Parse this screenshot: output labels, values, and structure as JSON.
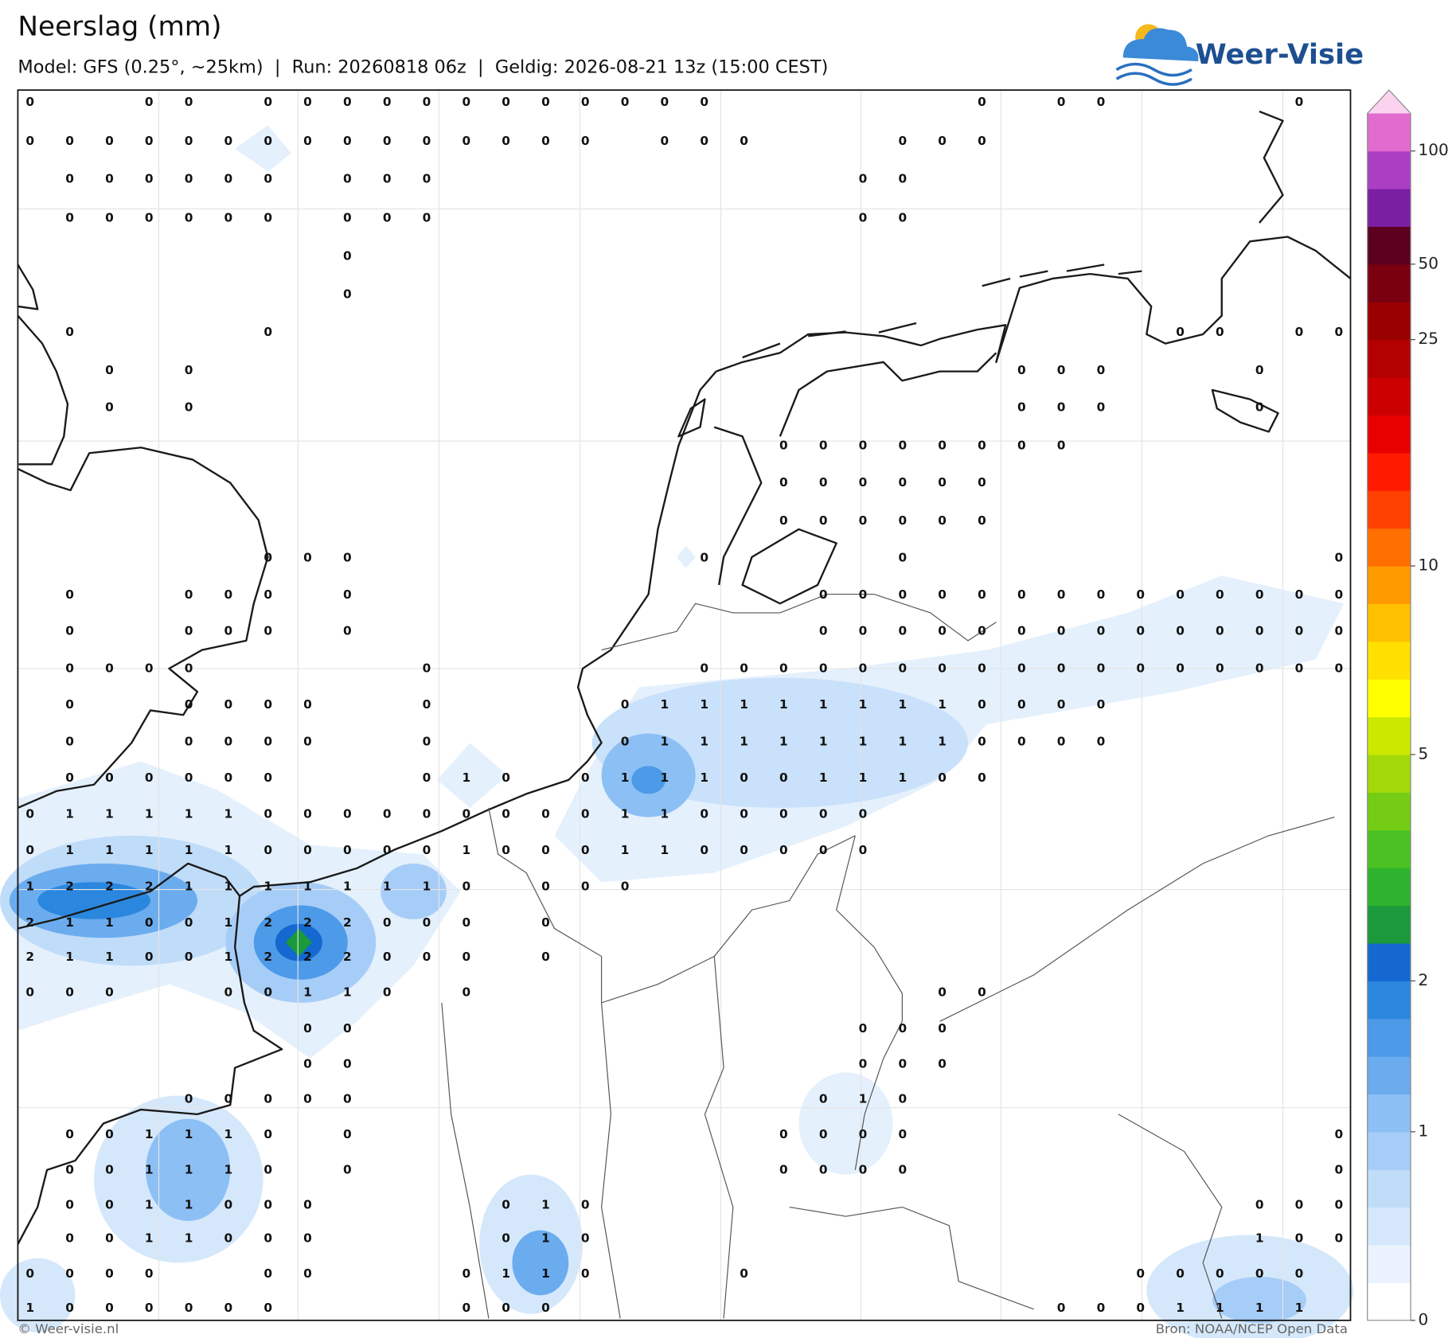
{
  "header": {
    "title": "Neerslag (mm)",
    "subtitle": "Model: GFS (0.25°, ~25km)  |  Run: 20260818 06z  |  Geldig: 2026-08-21 13z (15:00 CEST)"
  },
  "logo": {
    "text": "Weer-Visie"
  },
  "footer": {
    "copyright": "© Weer-visie.nl",
    "source": "Bron: NOAA/NCEP Open Data"
  },
  "map": {
    "grid_values": [
      [
        0,
        null,
        null,
        0,
        0,
        null,
        0,
        0,
        0,
        0,
        0,
        0,
        0,
        0,
        0,
        0,
        0,
        0,
        null,
        null,
        null,
        null,
        null,
        null,
        0,
        null,
        0,
        0,
        null,
        null,
        null,
        null,
        0,
        null
      ],
      [
        0,
        0,
        0,
        0,
        0,
        0,
        0,
        0,
        0,
        0,
        0,
        0,
        0,
        0,
        0,
        null,
        0,
        0,
        0,
        null,
        null,
        null,
        0,
        0,
        0,
        null,
        null,
        null,
        null,
        null,
        null,
        null,
        null,
        null
      ],
      [
        null,
        0,
        0,
        0,
        0,
        0,
        0,
        null,
        0,
        0,
        0,
        null,
        null,
        null,
        null,
        null,
        null,
        null,
        null,
        null,
        null,
        0,
        0,
        null,
        null,
        null,
        null,
        null,
        null,
        null,
        null,
        null,
        null,
        null
      ],
      [
        null,
        0,
        0,
        0,
        0,
        0,
        0,
        null,
        0,
        0,
        0,
        null,
        null,
        null,
        null,
        null,
        null,
        null,
        null,
        null,
        null,
        0,
        0,
        null,
        null,
        null,
        null,
        null,
        null,
        null,
        null,
        null,
        null,
        null
      ],
      [
        null,
        null,
        null,
        null,
        null,
        null,
        null,
        null,
        0,
        null,
        null,
        null,
        null,
        null,
        null,
        null,
        null,
        null,
        null,
        null,
        null,
        null,
        null,
        null,
        null,
        null,
        null,
        null,
        null,
        null,
        null,
        null,
        null,
        null
      ],
      [
        null,
        null,
        null,
        null,
        null,
        null,
        null,
        null,
        0,
        null,
        null,
        null,
        null,
        null,
        null,
        null,
        null,
        null,
        null,
        null,
        null,
        null,
        null,
        null,
        null,
        null,
        null,
        null,
        null,
        null,
        null,
        null,
        null,
        null
      ],
      [
        null,
        0,
        null,
        null,
        null,
        null,
        0,
        null,
        null,
        null,
        null,
        null,
        null,
        null,
        null,
        null,
        null,
        null,
        null,
        null,
        null,
        null,
        null,
        null,
        null,
        null,
        null,
        null,
        null,
        0,
        0,
        null,
        0,
        0
      ],
      [
        null,
        null,
        0,
        null,
        0,
        null,
        null,
        null,
        null,
        null,
        null,
        null,
        null,
        null,
        null,
        null,
        null,
        null,
        null,
        null,
        null,
        null,
        null,
        null,
        null,
        0,
        0,
        0,
        null,
        null,
        null,
        0,
        null,
        null
      ],
      [
        null,
        null,
        0,
        null,
        0,
        null,
        null,
        null,
        null,
        null,
        null,
        null,
        null,
        null,
        null,
        null,
        null,
        null,
        null,
        null,
        null,
        null,
        null,
        null,
        null,
        0,
        0,
        0,
        null,
        null,
        null,
        0,
        null,
        null
      ],
      [
        null,
        null,
        null,
        null,
        null,
        null,
        null,
        null,
        null,
        null,
        null,
        null,
        null,
        null,
        null,
        null,
        null,
        null,
        null,
        0,
        0,
        0,
        0,
        0,
        0,
        0,
        0,
        null,
        null,
        null,
        null,
        null,
        null,
        null
      ],
      [
        null,
        null,
        null,
        null,
        null,
        null,
        null,
        null,
        null,
        null,
        null,
        null,
        null,
        null,
        null,
        null,
        null,
        null,
        null,
        0,
        0,
        0,
        0,
        0,
        0,
        null,
        null,
        null,
        null,
        null,
        null,
        null,
        null,
        null
      ],
      [
        null,
        null,
        null,
        null,
        null,
        null,
        null,
        null,
        null,
        null,
        null,
        null,
        null,
        null,
        null,
        null,
        null,
        null,
        null,
        0,
        0,
        0,
        0,
        0,
        0,
        null,
        null,
        null,
        null,
        null,
        null,
        null,
        null,
        null
      ],
      [
        null,
        null,
        null,
        null,
        null,
        null,
        0,
        0,
        0,
        null,
        null,
        null,
        null,
        null,
        null,
        null,
        null,
        0,
        null,
        null,
        null,
        null,
        0,
        null,
        null,
        null,
        null,
        null,
        null,
        null,
        null,
        null,
        null,
        0
      ],
      [
        null,
        0,
        null,
        null,
        0,
        0,
        0,
        null,
        0,
        null,
        null,
        null,
        null,
        null,
        null,
        null,
        null,
        null,
        null,
        null,
        0,
        0,
        0,
        0,
        0,
        0,
        0,
        0,
        0,
        0,
        0,
        0,
        0,
        0
      ],
      [
        null,
        0,
        null,
        null,
        0,
        0,
        0,
        null,
        0,
        null,
        null,
        null,
        null,
        null,
        null,
        null,
        null,
        null,
        null,
        null,
        0,
        0,
        0,
        0,
        0,
        0,
        0,
        0,
        0,
        0,
        0,
        0,
        0,
        0
      ],
      [
        null,
        0,
        0,
        0,
        0,
        null,
        null,
        null,
        null,
        null,
        0,
        null,
        null,
        null,
        null,
        null,
        null,
        0,
        0,
        0,
        0,
        0,
        0,
        0,
        0,
        0,
        0,
        0,
        0,
        0,
        0,
        0,
        0,
        0
      ],
      [
        null,
        0,
        null,
        null,
        0,
        0,
        0,
        0,
        null,
        null,
        0,
        null,
        null,
        null,
        null,
        0,
        1,
        1,
        1,
        1,
        1,
        1,
        1,
        1,
        0,
        0,
        0,
        0,
        null,
        null,
        null,
        null,
        null,
        null
      ],
      [
        null,
        0,
        null,
        null,
        0,
        0,
        0,
        0,
        null,
        null,
        0,
        null,
        null,
        null,
        null,
        0,
        1,
        1,
        1,
        1,
        1,
        1,
        1,
        1,
        0,
        0,
        0,
        0,
        null,
        null,
        null,
        null,
        null,
        null
      ],
      [
        null,
        0,
        0,
        0,
        0,
        0,
        0,
        null,
        null,
        null,
        0,
        1,
        0,
        null,
        0,
        1,
        1,
        1,
        0,
        0,
        1,
        1,
        1,
        0,
        0,
        null,
        null,
        null,
        null,
        null,
        null,
        null,
        null,
        null
      ],
      [
        0,
        1,
        1,
        1,
        1,
        1,
        0,
        0,
        0,
        0,
        0,
        0,
        0,
        0,
        0,
        1,
        1,
        0,
        0,
        0,
        0,
        0,
        null,
        null,
        null,
        null,
        null,
        null,
        null,
        null,
        null,
        null,
        null,
        null
      ],
      [
        0,
        1,
        1,
        1,
        1,
        1,
        0,
        0,
        0,
        0,
        0,
        1,
        0,
        0,
        0,
        1,
        1,
        0,
        0,
        0,
        0,
        0,
        null,
        null,
        null,
        null,
        null,
        null,
        null,
        null,
        null,
        null,
        null,
        null
      ],
      [
        1,
        2,
        2,
        2,
        1,
        1,
        1,
        1,
        1,
        1,
        1,
        0,
        null,
        0,
        0,
        0,
        null,
        null,
        null,
        null,
        null,
        null,
        null,
        null,
        null,
        null,
        null,
        null,
        null,
        null,
        null,
        null,
        null,
        null
      ],
      [
        2,
        1,
        1,
        0,
        0,
        1,
        2,
        2,
        2,
        0,
        0,
        0,
        null,
        0,
        null,
        null,
        null,
        null,
        null,
        null,
        null,
        null,
        null,
        null,
        null,
        null,
        null,
        null,
        null,
        null,
        null,
        null,
        null,
        null
      ],
      [
        2,
        1,
        1,
        0,
        0,
        1,
        2,
        2,
        2,
        0,
        0,
        0,
        null,
        0,
        null,
        null,
        null,
        null,
        null,
        null,
        null,
        null,
        null,
        null,
        null,
        null,
        null,
        null,
        null,
        null,
        null,
        null,
        null,
        null
      ],
      [
        0,
        0,
        0,
        null,
        null,
        0,
        0,
        1,
        1,
        0,
        null,
        0,
        null,
        null,
        null,
        null,
        null,
        null,
        null,
        null,
        null,
        null,
        null,
        0,
        0,
        null,
        null,
        null,
        null,
        null,
        null,
        null,
        null,
        null
      ],
      [
        null,
        null,
        null,
        null,
        null,
        null,
        null,
        0,
        0,
        null,
        null,
        null,
        null,
        null,
        null,
        null,
        null,
        null,
        null,
        null,
        null,
        0,
        0,
        0,
        null,
        null,
        null,
        null,
        null,
        null,
        null,
        null,
        null,
        null
      ],
      [
        null,
        null,
        null,
        null,
        null,
        null,
        null,
        0,
        0,
        null,
        null,
        null,
        null,
        null,
        null,
        null,
        null,
        null,
        null,
        null,
        null,
        0,
        0,
        0,
        null,
        null,
        null,
        null,
        null,
        null,
        null,
        null,
        null,
        null
      ],
      [
        null,
        null,
        null,
        null,
        0,
        0,
        0,
        0,
        0,
        null,
        null,
        null,
        null,
        null,
        null,
        null,
        null,
        null,
        null,
        null,
        0,
        1,
        0,
        null,
        null,
        null,
        null,
        null,
        null,
        null,
        null,
        null,
        null,
        null
      ],
      [
        null,
        0,
        0,
        1,
        1,
        1,
        0,
        null,
        0,
        null,
        null,
        null,
        null,
        null,
        null,
        null,
        null,
        null,
        null,
        0,
        0,
        0,
        0,
        null,
        null,
        null,
        null,
        null,
        null,
        null,
        null,
        null,
        null,
        0
      ],
      [
        null,
        0,
        0,
        1,
        1,
        1,
        0,
        null,
        0,
        null,
        null,
        null,
        null,
        null,
        null,
        null,
        null,
        null,
        null,
        0,
        0,
        0,
        0,
        null,
        null,
        null,
        null,
        null,
        null,
        null,
        null,
        null,
        null,
        0
      ],
      [
        null,
        0,
        0,
        1,
        1,
        0,
        0,
        0,
        null,
        null,
        null,
        null,
        0,
        1,
        0,
        null,
        null,
        null,
        null,
        null,
        null,
        null,
        null,
        null,
        null,
        null,
        null,
        null,
        null,
        null,
        null,
        0,
        0,
        0
      ],
      [
        null,
        0,
        0,
        1,
        1,
        0,
        0,
        0,
        null,
        null,
        null,
        null,
        0,
        1,
        0,
        null,
        null,
        null,
        null,
        null,
        null,
        null,
        null,
        null,
        null,
        null,
        null,
        null,
        null,
        null,
        null,
        1,
        0,
        0
      ],
      [
        0,
        0,
        0,
        0,
        null,
        null,
        0,
        0,
        null,
        null,
        null,
        0,
        1,
        1,
        0,
        null,
        null,
        null,
        0,
        null,
        null,
        null,
        null,
        null,
        null,
        null,
        null,
        null,
        0,
        0,
        0,
        0,
        0,
        null
      ],
      [
        1,
        0,
        0,
        0,
        0,
        0,
        0,
        null,
        null,
        null,
        null,
        0,
        0,
        0,
        null,
        null,
        null,
        null,
        null,
        null,
        null,
        null,
        null,
        null,
        null,
        null,
        0,
        0,
        0,
        1,
        1,
        1,
        1,
        null
      ]
    ]
  },
  "colorbar": {
    "colors": [
      "#ffffff",
      "#eaf3fd",
      "#d5e8fb",
      "#bfdcf9",
      "#a6cdf7",
      "#8cbff4",
      "#6bacef",
      "#4c9ae8",
      "#2b87de",
      "#1468d0",
      "#1a9a3a",
      "#2db32d",
      "#4cc124",
      "#74cd14",
      "#a3d90a",
      "#cce800",
      "#ffff00",
      "#ffe000",
      "#ffc000",
      "#ff9a00",
      "#ff7000",
      "#ff4000",
      "#ff1a00",
      "#e60000",
      "#cc0000",
      "#b30000",
      "#990000",
      "#7a0010",
      "#5c0020",
      "#7b1fa2",
      "#ab3fc4",
      "#e26bcf",
      "#fbd3ef"
    ],
    "levels": [
      0,
      0.2,
      0.4,
      0.6,
      0.8,
      1,
      1.25,
      1.5,
      1.75,
      2,
      2.5,
      3,
      3.5,
      4,
      4.5,
      5,
      6,
      7,
      8,
      9,
      10,
      12,
      14,
      16,
      18,
      20,
      25,
      35,
      50,
      70,
      85,
      100,
      150
    ],
    "ticks": [
      0,
      1,
      2,
      5,
      10,
      25,
      50,
      100
    ]
  }
}
